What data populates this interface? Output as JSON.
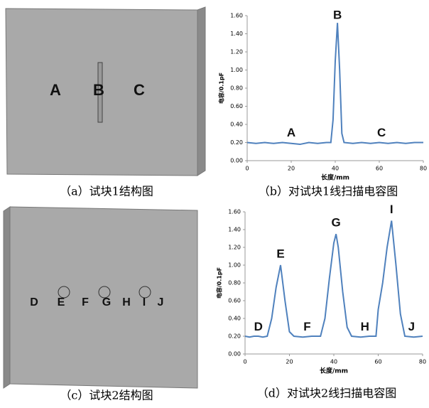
{
  "figures": [
    {
      "caption": "（a）试块1结构图",
      "labels": [
        "A",
        "B",
        "C"
      ]
    },
    {
      "caption": "（c）试块2结构图",
      "labels": [
        "D",
        "E",
        "F",
        "G",
        "H",
        "I",
        "J"
      ]
    }
  ],
  "chart_data": [
    {
      "type": "line",
      "caption": "（b）对试块1线扫描电容图",
      "xlabel": "长度/mm",
      "ylabel": "电容/0.1pF",
      "x": [
        0,
        4,
        8,
        12,
        16,
        20,
        24,
        28,
        32,
        36,
        38,
        39,
        40,
        41,
        42,
        43,
        44,
        48,
        52,
        56,
        60,
        64,
        68,
        72,
        76,
        80
      ],
      "series": [
        {
          "color": "#4f81bd",
          "values": [
            0.2,
            0.19,
            0.2,
            0.19,
            0.2,
            0.19,
            0.18,
            0.2,
            0.19,
            0.2,
            0.2,
            0.45,
            1.1,
            1.52,
            1.0,
            0.3,
            0.2,
            0.19,
            0.2,
            0.19,
            0.2,
            0.19,
            0.2,
            0.19,
            0.2,
            0.2
          ]
        }
      ],
      "xlim": [
        0,
        80
      ],
      "xticks": [
        0,
        20,
        40,
        60,
        80
      ],
      "ylim": [
        0,
        1.6
      ],
      "yticks": [
        {
          "value": 0,
          "label": "0.00"
        },
        {
          "value": 0.2,
          "label": "0.20"
        },
        {
          "value": 0.4,
          "label": "0.40"
        },
        {
          "value": 0.6,
          "label": "0.60"
        },
        {
          "value": 0.8,
          "label": "0.80"
        },
        {
          "value": 1.0,
          "label": "1.00"
        },
        {
          "value": 1.2,
          "label": "1.20"
        },
        {
          "value": 1.4,
          "label": "1.40"
        },
        {
          "value": 1.6,
          "label": "1.60"
        }
      ],
      "annotations": [
        {
          "text": "A",
          "x": 20,
          "y": 0.3
        },
        {
          "text": "B",
          "x": 41,
          "y": 1.6
        },
        {
          "text": "C",
          "x": 61,
          "y": 0.3
        }
      ]
    },
    {
      "type": "line",
      "caption": "（d）对试块2线扫描电容图",
      "xlabel": "长度/mm",
      "ylabel": "电容/0.1pF",
      "x": [
        0,
        2,
        4,
        6,
        8,
        10,
        12,
        14,
        16,
        18,
        20,
        22,
        26,
        30,
        34,
        36,
        38,
        40,
        41,
        42,
        44,
        46,
        48,
        52,
        56,
        59,
        60,
        62,
        64,
        66,
        68,
        70,
        72,
        76,
        80
      ],
      "series": [
        {
          "color": "#4f81bd",
          "values": [
            0.2,
            0.19,
            0.2,
            0.2,
            0.19,
            0.2,
            0.4,
            0.75,
            1.0,
            0.6,
            0.25,
            0.2,
            0.19,
            0.2,
            0.2,
            0.4,
            0.85,
            1.25,
            1.35,
            1.2,
            0.7,
            0.3,
            0.2,
            0.19,
            0.2,
            0.2,
            0.5,
            0.8,
            1.2,
            1.5,
            1.0,
            0.45,
            0.2,
            0.19,
            0.2
          ]
        }
      ],
      "xlim": [
        0,
        80
      ],
      "xticks": [
        0,
        20,
        40,
        60,
        80
      ],
      "ylim": [
        0,
        1.6
      ],
      "yticks": [
        {
          "value": 0,
          "label": "0.00"
        },
        {
          "value": 0.2,
          "label": "0.20"
        },
        {
          "value": 0.4,
          "label": "0.40"
        },
        {
          "value": 0.6,
          "label": "0.60"
        },
        {
          "value": 0.8,
          "label": "0.80"
        },
        {
          "value": 1.0,
          "label": "1.00"
        },
        {
          "value": 1.2,
          "label": "1.20"
        },
        {
          "value": 1.4,
          "label": "1.40"
        },
        {
          "value": 1.6,
          "label": "1.60"
        }
      ],
      "annotations": [
        {
          "text": "D",
          "x": 6,
          "y": 0.3
        },
        {
          "text": "E",
          "x": 16,
          "y": 1.12
        },
        {
          "text": "F",
          "x": 28,
          "y": 0.3
        },
        {
          "text": "G",
          "x": 41,
          "y": 1.47
        },
        {
          "text": "H",
          "x": 54,
          "y": 0.3
        },
        {
          "text": "I",
          "x": 66,
          "y": 1.62
        },
        {
          "text": "J",
          "x": 75,
          "y": 0.3
        }
      ]
    }
  ]
}
